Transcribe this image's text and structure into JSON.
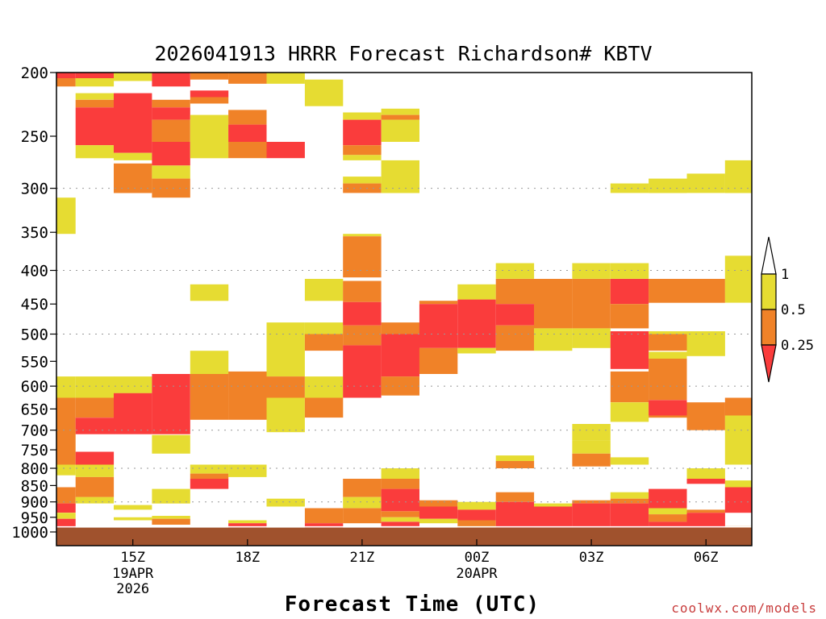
{
  "colors": {
    "low": "#fa3c3c",
    "mid": "#f08228",
    "high": "#e6dc32",
    "ground": "#a0522d",
    "grid": "#999999"
  },
  "chart_data": {
    "type": "heatmap",
    "title": "2026041913 HRRR Forecast Richardson# KBTV",
    "xlabel": "Forecast Time (UTC)",
    "credit": "coolwx.com/models",
    "y_axis": {
      "scale": "log",
      "reversed": true,
      "range": [
        200,
        1000
      ],
      "ticks": [
        200,
        250,
        300,
        350,
        400,
        450,
        500,
        550,
        600,
        650,
        700,
        750,
        800,
        850,
        900,
        950,
        1000
      ]
    },
    "x_axis": {
      "range_hours": [
        13,
        31.2
      ],
      "ticks": [
        {
          "hour": 15,
          "label": "15Z",
          "sub": [
            "19APR",
            "2026"
          ]
        },
        {
          "hour": 18,
          "label": "18Z",
          "sub": []
        },
        {
          "hour": 21,
          "label": "21Z",
          "sub": []
        },
        {
          "hour": 24,
          "label": "00Z",
          "sub": [
            "20APR"
          ]
        },
        {
          "hour": 27,
          "label": "03Z",
          "sub": []
        },
        {
          "hour": 30,
          "label": "06Z",
          "sub": []
        }
      ]
    },
    "grid": "dotted at 300, 400, 500, 600, 700, 800, 900 hPa",
    "legend": {
      "placement": "right",
      "labels": [
        "1",
        "0.5",
        "0.25"
      ],
      "bins": [
        "0.5-1 (high)",
        "0.25-0.5 (mid)",
        "<0.25 (low)"
      ]
    },
    "ground_level_hpa": 985,
    "cells": [
      [
        13,
        13.5,
        200,
        204,
        "low"
      ],
      [
        13,
        13.5,
        204,
        210,
        "mid"
      ],
      [
        13,
        13.5,
        310,
        352,
        "high"
      ],
      [
        13,
        13.5,
        580,
        625,
        "high"
      ],
      [
        13,
        13.5,
        625,
        790,
        "mid"
      ],
      [
        13,
        13.5,
        790,
        820,
        "high"
      ],
      [
        13,
        13.5,
        855,
        905,
        "mid"
      ],
      [
        13,
        13.5,
        905,
        935,
        "low"
      ],
      [
        13,
        13.5,
        935,
        955,
        "high"
      ],
      [
        13,
        13.5,
        955,
        985,
        "low"
      ],
      [
        13.5,
        14.5,
        200,
        204,
        "low"
      ],
      [
        13.5,
        14.5,
        204,
        210,
        "high"
      ],
      [
        13.5,
        14.5,
        215,
        220,
        "high"
      ],
      [
        13.5,
        14.5,
        220,
        226,
        "mid"
      ],
      [
        13.5,
        14.5,
        226,
        258,
        "low"
      ],
      [
        13.5,
        14.5,
        258,
        270,
        "high"
      ],
      [
        13.5,
        14.5,
        580,
        625,
        "high"
      ],
      [
        13.5,
        14.5,
        625,
        670,
        "mid"
      ],
      [
        13.5,
        14.5,
        670,
        710,
        "low"
      ],
      [
        13.5,
        14.5,
        755,
        790,
        "low"
      ],
      [
        13.5,
        14.5,
        790,
        825,
        "high"
      ],
      [
        13.5,
        14.5,
        825,
        885,
        "mid"
      ],
      [
        13.5,
        14.5,
        885,
        905,
        "high"
      ],
      [
        14.5,
        15.5,
        200,
        206,
        "high"
      ],
      [
        14.5,
        15.5,
        215,
        265,
        "low"
      ],
      [
        14.5,
        15.5,
        265,
        272,
        "high"
      ],
      [
        14.5,
        15.5,
        275,
        305,
        "mid"
      ],
      [
        14.5,
        15.5,
        580,
        615,
        "high"
      ],
      [
        14.5,
        15.5,
        615,
        710,
        "low"
      ],
      [
        14.5,
        15.5,
        910,
        925,
        "high"
      ],
      [
        14.5,
        15.5,
        950,
        960,
        "high"
      ],
      [
        15.5,
        16.5,
        200,
        210,
        "low"
      ],
      [
        15.5,
        16.5,
        220,
        226,
        "mid"
      ],
      [
        15.5,
        16.5,
        226,
        236,
        "low"
      ],
      [
        15.5,
        16.5,
        236,
        255,
        "mid"
      ],
      [
        15.5,
        16.5,
        255,
        277,
        "low"
      ],
      [
        15.5,
        16.5,
        277,
        290,
        "high"
      ],
      [
        15.5,
        16.5,
        290,
        310,
        "mid"
      ],
      [
        15.5,
        16.5,
        575,
        710,
        "low"
      ],
      [
        15.5,
        16.5,
        712,
        760,
        "high"
      ],
      [
        15.5,
        16.5,
        860,
        905,
        "high"
      ],
      [
        15.5,
        16.5,
        945,
        955,
        "high"
      ],
      [
        15.5,
        16.5,
        955,
        975,
        "mid"
      ],
      [
        16.5,
        17.5,
        200,
        205,
        "mid"
      ],
      [
        16.5,
        17.5,
        213,
        218,
        "low"
      ],
      [
        16.5,
        17.5,
        218,
        223,
        "mid"
      ],
      [
        16.5,
        17.5,
        232,
        270,
        "high"
      ],
      [
        16.5,
        17.5,
        420,
        445,
        "high"
      ],
      [
        16.5,
        17.5,
        530,
        575,
        "high"
      ],
      [
        16.5,
        17.5,
        575,
        675,
        "mid"
      ],
      [
        16.5,
        17.5,
        790,
        815,
        "high"
      ],
      [
        16.5,
        17.5,
        815,
        830,
        "mid"
      ],
      [
        16.5,
        17.5,
        830,
        860,
        "low"
      ],
      [
        17.5,
        18.5,
        200,
        208,
        "mid"
      ],
      [
        17.5,
        18.5,
        228,
        240,
        "mid"
      ],
      [
        17.5,
        18.5,
        240,
        255,
        "low"
      ],
      [
        17.5,
        18.5,
        255,
        270,
        "mid"
      ],
      [
        17.5,
        18.5,
        570,
        675,
        "mid"
      ],
      [
        17.5,
        18.5,
        790,
        825,
        "high"
      ],
      [
        17.5,
        18.5,
        960,
        970,
        "high"
      ],
      [
        17.5,
        18.5,
        970,
        985,
        "low"
      ],
      [
        18.5,
        19.5,
        200,
        208,
        "high"
      ],
      [
        18.5,
        19.5,
        255,
        270,
        "low"
      ],
      [
        18.5,
        19.5,
        480,
        580,
        "high"
      ],
      [
        18.5,
        19.5,
        580,
        625,
        "mid"
      ],
      [
        18.5,
        19.5,
        625,
        705,
        "high"
      ],
      [
        18.5,
        19.5,
        890,
        915,
        "high"
      ],
      [
        19.5,
        20.5,
        205,
        225,
        "high"
      ],
      [
        19.5,
        20.5,
        412,
        445,
        "high"
      ],
      [
        19.5,
        20.5,
        480,
        500,
        "high"
      ],
      [
        19.5,
        20.5,
        500,
        530,
        "mid"
      ],
      [
        19.5,
        20.5,
        580,
        625,
        "high"
      ],
      [
        19.5,
        20.5,
        625,
        670,
        "mid"
      ],
      [
        19.5,
        20.5,
        920,
        970,
        "mid"
      ],
      [
        19.5,
        20.5,
        970,
        985,
        "low"
      ],
      [
        20.5,
        21.5,
        230,
        236,
        "high"
      ],
      [
        20.5,
        21.5,
        236,
        258,
        "low"
      ],
      [
        20.5,
        21.5,
        258,
        267,
        "mid"
      ],
      [
        20.5,
        21.5,
        267,
        272,
        "high"
      ],
      [
        20.5,
        21.5,
        288,
        295,
        "high"
      ],
      [
        20.5,
        21.5,
        295,
        305,
        "mid"
      ],
      [
        20.5,
        21.5,
        352,
        355,
        "high"
      ],
      [
        20.5,
        21.5,
        355,
        410,
        "mid"
      ],
      [
        20.5,
        21.5,
        415,
        447,
        "mid"
      ],
      [
        20.5,
        21.5,
        447,
        485,
        "low"
      ],
      [
        20.5,
        21.5,
        485,
        520,
        "mid"
      ],
      [
        20.5,
        21.5,
        520,
        625,
        "low"
      ],
      [
        20.5,
        21.5,
        830,
        885,
        "mid"
      ],
      [
        20.5,
        21.5,
        885,
        920,
        "high"
      ],
      [
        20.5,
        21.5,
        920,
        970,
        "mid"
      ],
      [
        21.5,
        22.5,
        227,
        232,
        "high"
      ],
      [
        21.5,
        22.5,
        232,
        236,
        "mid"
      ],
      [
        21.5,
        22.5,
        236,
        255,
        "high"
      ],
      [
        21.5,
        22.5,
        272,
        305,
        "high"
      ],
      [
        21.5,
        22.5,
        480,
        500,
        "mid"
      ],
      [
        21.5,
        22.5,
        500,
        580,
        "low"
      ],
      [
        21.5,
        22.5,
        580,
        620,
        "mid"
      ],
      [
        21.5,
        22.5,
        800,
        830,
        "high"
      ],
      [
        21.5,
        22.5,
        830,
        860,
        "mid"
      ],
      [
        21.5,
        22.5,
        860,
        930,
        "low"
      ],
      [
        21.5,
        22.5,
        930,
        950,
        "mid"
      ],
      [
        21.5,
        22.5,
        950,
        965,
        "high"
      ],
      [
        21.5,
        22.5,
        965,
        980,
        "low"
      ],
      [
        22.5,
        23.5,
        445,
        450,
        "mid"
      ],
      [
        22.5,
        23.5,
        450,
        525,
        "low"
      ],
      [
        22.5,
        23.5,
        525,
        575,
        "mid"
      ],
      [
        22.5,
        23.5,
        895,
        915,
        "mid"
      ],
      [
        22.5,
        23.5,
        915,
        955,
        "low"
      ],
      [
        22.5,
        23.5,
        955,
        970,
        "high"
      ],
      [
        23.5,
        24.5,
        420,
        443,
        "high"
      ],
      [
        23.5,
        24.5,
        443,
        525,
        "low"
      ],
      [
        23.5,
        24.5,
        525,
        535,
        "high"
      ],
      [
        23.5,
        24.5,
        900,
        925,
        "high"
      ],
      [
        23.5,
        24.5,
        925,
        960,
        "low"
      ],
      [
        23.5,
        24.5,
        960,
        985,
        "mid"
      ],
      [
        24.5,
        25.5,
        390,
        412,
        "high"
      ],
      [
        24.5,
        25.5,
        412,
        450,
        "mid"
      ],
      [
        24.5,
        25.5,
        450,
        485,
        "low"
      ],
      [
        24.5,
        25.5,
        485,
        530,
        "mid"
      ],
      [
        24.5,
        25.5,
        765,
        780,
        "high"
      ],
      [
        24.5,
        25.5,
        780,
        800,
        "mid"
      ],
      [
        24.5,
        25.5,
        870,
        900,
        "mid"
      ],
      [
        24.5,
        25.5,
        900,
        985,
        "low"
      ],
      [
        25.5,
        26.5,
        412,
        490,
        "mid"
      ],
      [
        25.5,
        26.5,
        490,
        530,
        "high"
      ],
      [
        25.5,
        26.5,
        905,
        915,
        "high"
      ],
      [
        25.5,
        26.5,
        915,
        985,
        "low"
      ],
      [
        26.5,
        27.5,
        390,
        412,
        "high"
      ],
      [
        26.5,
        27.5,
        412,
        490,
        "mid"
      ],
      [
        26.5,
        27.5,
        490,
        525,
        "high"
      ],
      [
        26.5,
        27.5,
        685,
        725,
        "high"
      ],
      [
        26.5,
        27.5,
        725,
        760,
        "high"
      ],
      [
        26.5,
        27.5,
        760,
        795,
        "mid"
      ],
      [
        26.5,
        27.5,
        895,
        905,
        "mid"
      ],
      [
        26.5,
        27.5,
        905,
        985,
        "low"
      ],
      [
        27.5,
        28.5,
        295,
        305,
        "high"
      ],
      [
        27.5,
        28.5,
        390,
        412,
        "high"
      ],
      [
        27.5,
        28.5,
        412,
        450,
        "low"
      ],
      [
        27.5,
        28.5,
        450,
        490,
        "mid"
      ],
      [
        27.5,
        28.5,
        495,
        565,
        "low"
      ],
      [
        27.5,
        28.5,
        570,
        635,
        "mid"
      ],
      [
        27.5,
        28.5,
        635,
        680,
        "high"
      ],
      [
        27.5,
        28.5,
        770,
        790,
        "high"
      ],
      [
        27.5,
        28.5,
        870,
        890,
        "high"
      ],
      [
        27.5,
        28.5,
        890,
        905,
        "mid"
      ],
      [
        27.5,
        28.5,
        905,
        985,
        "low"
      ],
      [
        28.5,
        29.5,
        290,
        305,
        "high"
      ],
      [
        28.5,
        29.5,
        412,
        448,
        "mid"
      ],
      [
        28.5,
        29.5,
        495,
        500,
        "high"
      ],
      [
        28.5,
        29.5,
        500,
        530,
        "mid"
      ],
      [
        28.5,
        29.5,
        532,
        545,
        "high"
      ],
      [
        28.5,
        29.5,
        545,
        630,
        "mid"
      ],
      [
        28.5,
        29.5,
        630,
        665,
        "low"
      ],
      [
        28.5,
        29.5,
        665,
        670,
        "mid"
      ],
      [
        28.5,
        29.5,
        860,
        920,
        "low"
      ],
      [
        28.5,
        29.5,
        920,
        940,
        "high"
      ],
      [
        28.5,
        29.5,
        940,
        965,
        "mid"
      ],
      [
        28.5,
        29.5,
        965,
        985,
        "low"
      ],
      [
        29.5,
        30.5,
        285,
        305,
        "high"
      ],
      [
        29.5,
        30.5,
        412,
        448,
        "mid"
      ],
      [
        29.5,
        30.5,
        495,
        540,
        "high"
      ],
      [
        29.5,
        30.5,
        635,
        700,
        "mid"
      ],
      [
        29.5,
        30.5,
        800,
        830,
        "high"
      ],
      [
        29.5,
        30.5,
        830,
        845,
        "low"
      ],
      [
        29.5,
        30.5,
        925,
        935,
        "mid"
      ],
      [
        29.5,
        30.5,
        935,
        985,
        "low"
      ],
      [
        30.5,
        31.2,
        272,
        305,
        "high"
      ],
      [
        30.5,
        31.2,
        380,
        448,
        "high"
      ],
      [
        30.5,
        31.2,
        625,
        665,
        "mid"
      ],
      [
        30.5,
        31.2,
        665,
        790,
        "high"
      ],
      [
        30.5,
        31.2,
        835,
        855,
        "high"
      ],
      [
        30.5,
        31.2,
        855,
        935,
        "low"
      ],
      [
        30.5,
        31.2,
        980,
        985,
        "mid"
      ]
    ]
  }
}
